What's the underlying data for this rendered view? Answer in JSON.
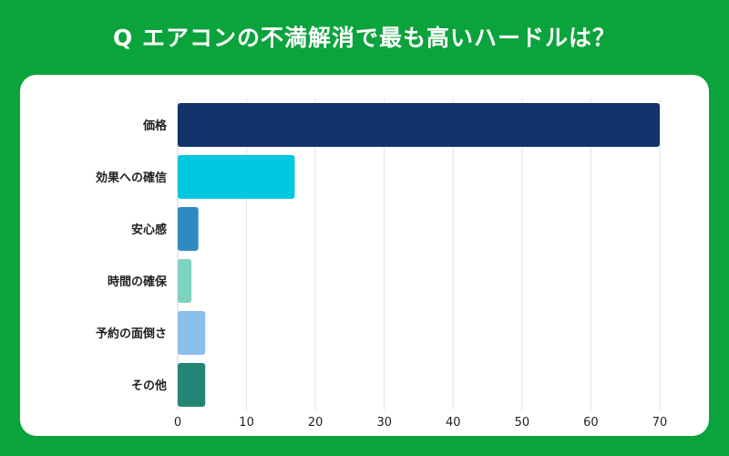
{
  "title": "Q エアコンの不満解消で最も高いハードルは？",
  "chart_data": {
    "type": "bar",
    "orientation": "horizontal",
    "title": "Q エアコンの不満解消で最も高いハードルは？",
    "categories": [
      "価格",
      "効果への確信",
      "安心感",
      "時間の確保",
      "予約の面倒さ",
      "その他"
    ],
    "values": [
      70,
      17,
      3,
      2,
      4,
      4
    ],
    "colors": [
      "#12336b",
      "#00c8e0",
      "#2e8bc0",
      "#7dd3c0",
      "#8abfec",
      "#258574"
    ],
    "xticks": [
      0,
      10,
      20,
      30,
      40,
      50,
      60,
      70
    ],
    "xlim": [
      0,
      70
    ],
    "grid": true,
    "xlabel": "",
    "ylabel": ""
  }
}
